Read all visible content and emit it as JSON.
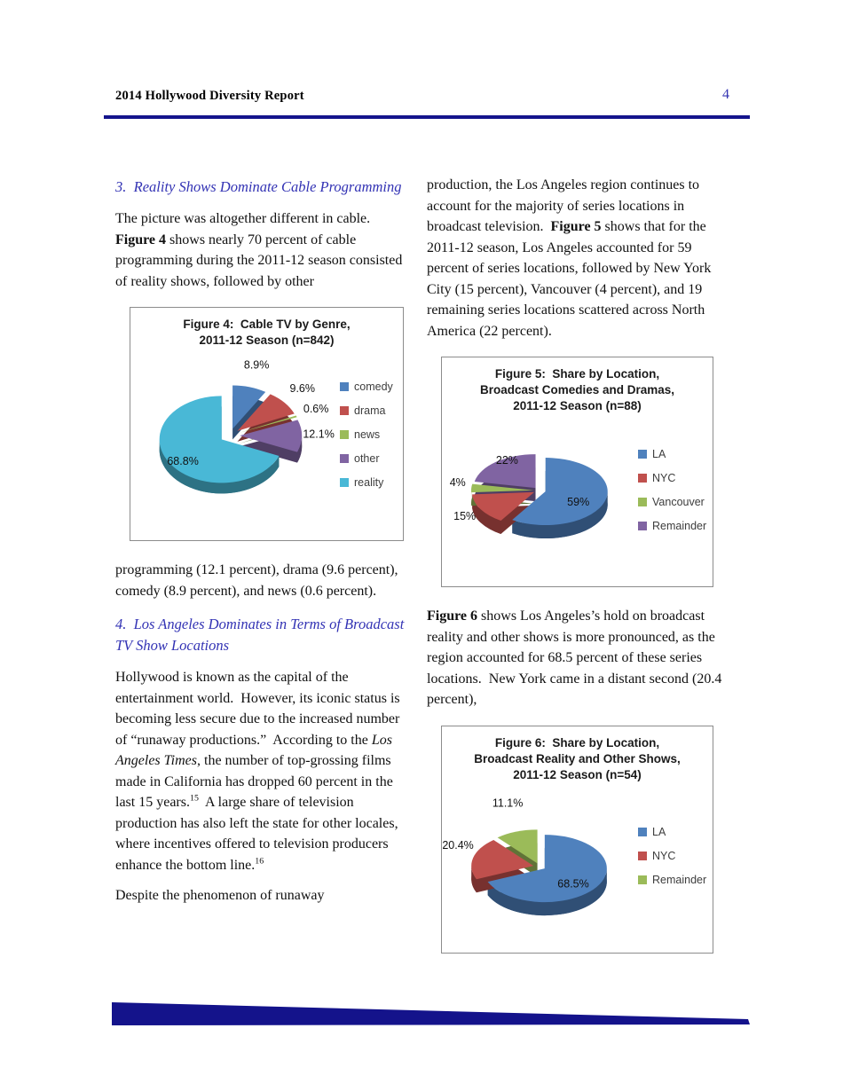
{
  "header": {
    "title": "2014 Hollywood Diversity Report",
    "page_number": "4"
  },
  "colors": {
    "heading_blue": "#3232b4",
    "rule_navy": "#14148c",
    "footer_wedge": "#14138b",
    "excel_blue": "#4f81bd",
    "excel_red": "#c0504d",
    "excel_green": "#9bbb59",
    "excel_purple": "#8064a2",
    "excel_cyan": "#49b8d6"
  },
  "left_column": {
    "heading3": "3.  Reality Shows Dominate Cable Programming",
    "p1": [
      {
        "t": "The picture was altogether different in cable.  "
      },
      {
        "t": "Figure 4",
        "s": "b"
      },
      {
        "t": " shows nearly 70 percent of cable programming during the 2011-12 season consisted of reality shows, followed by other"
      }
    ],
    "p2": [
      {
        "t": "programming (12.1 percent), drama (9.6 percent), comedy (8.9 percent), and news (0.6 percent)."
      }
    ],
    "heading4": "4.  Los Angeles Dominates in Terms of Broadcast TV Show Locations",
    "p3": [
      {
        "t": "Hollywood is known as the capital of the entertainment world.  However, its iconic status is becoming less secure due to the increased number of “runaway productions.”  According to the "
      },
      {
        "t": "Los Angeles Times",
        "s": "i"
      },
      {
        "t": ", the number of top-grossing films made in California has dropped 60 percent in the last 15 years."
      },
      {
        "t": "15",
        "s": "sup"
      },
      {
        "t": "  A large share of television production has also left the state for other locales, where incentives offered to television producers enhance the bottom line."
      },
      {
        "t": "16",
        "s": "sup"
      }
    ],
    "p4": [
      {
        "t": "Despite the phenomenon of runaway"
      }
    ]
  },
  "right_column": {
    "p1": [
      {
        "t": "production, the Los Angeles region continues to account for the majority of series locations in broadcast television.  "
      },
      {
        "t": "Figure 5",
        "s": "b"
      },
      {
        "t": " shows that for the 2011-12 season, Los Angeles accounted for 59 percent of series locations, followed by New York City (15 percent), Vancouver (4 percent), and 19 remaining series locations scattered across North America (22 percent)."
      }
    ],
    "p2": [
      {
        "t": "Figure 6",
        "s": "b"
      },
      {
        "t": " shows Los Angeles’s hold on broadcast reality and other shows is more pronounced, as the region accounted for 68.5 percent of these series locations.  New York came in a distant second (20.4 percent),"
      }
    ]
  },
  "chart_data": [
    {
      "id": "figure4",
      "type": "pie",
      "style": "3d-exploded",
      "title_lines": [
        "Figure 4:  Cable TV by Genre,",
        "2011-12 Season (n=842)"
      ],
      "legend_position": "right",
      "slices": [
        {
          "label": "comedy",
          "value": 8.9,
          "display": "8.9%",
          "color": "#4f81bd"
        },
        {
          "label": "drama",
          "value": 9.6,
          "display": "9.6%",
          "color": "#c0504d"
        },
        {
          "label": "news",
          "value": 0.6,
          "display": "0.6%",
          "color": "#9bbb59"
        },
        {
          "label": "other",
          "value": 12.1,
          "display": "12.1%",
          "color": "#8064a2"
        },
        {
          "label": "reality",
          "value": 68.8,
          "display": "68.8%",
          "color": "#49b8d6",
          "inside": true
        }
      ]
    },
    {
      "id": "figure5",
      "type": "pie",
      "style": "3d-exploded",
      "title_lines": [
        "Figure 5:  Share by Location,",
        "Broadcast Comedies and Dramas,",
        "2011-12 Season (n=88)"
      ],
      "legend_position": "right",
      "slices": [
        {
          "label": "LA",
          "value": 59,
          "display": "59%",
          "color": "#4f81bd",
          "inside": true
        },
        {
          "label": "NYC",
          "value": 15,
          "display": "15%",
          "color": "#c0504d"
        },
        {
          "label": "Vancouver",
          "value": 4,
          "display": "4%",
          "color": "#9bbb59"
        },
        {
          "label": "Remainder",
          "value": 22,
          "display": "22%",
          "color": "#8064a2"
        }
      ]
    },
    {
      "id": "figure6",
      "type": "pie",
      "style": "3d-exploded",
      "title_lines": [
        "Figure 6:  Share by Location,",
        "Broadcast Reality and Other Shows,",
        "2011-12 Season (n=54)"
      ],
      "legend_position": "right",
      "slices": [
        {
          "label": "LA",
          "value": 68.5,
          "display": "68.5%",
          "color": "#4f81bd",
          "inside": true
        },
        {
          "label": "NYC",
          "value": 20.4,
          "display": "20.4%",
          "color": "#c0504d"
        },
        {
          "label": "Remainder",
          "value": 11.1,
          "display": "11.1%",
          "color": "#9bbb59"
        }
      ]
    }
  ]
}
